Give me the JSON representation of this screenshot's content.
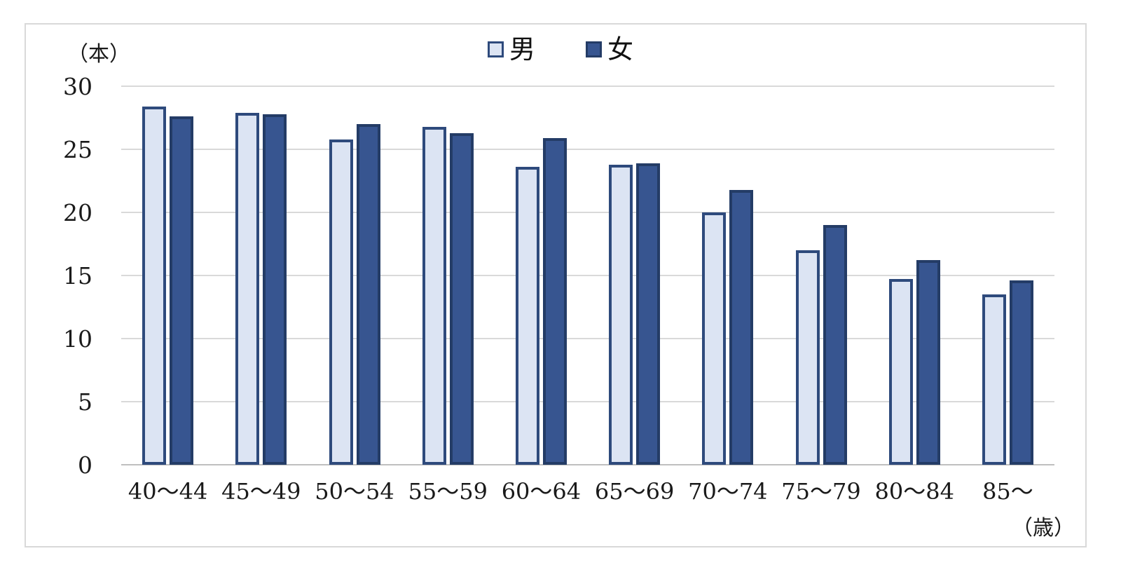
{
  "chart_data": {
    "type": "bar",
    "title": "",
    "y_axis_unit": "（本）",
    "x_axis_unit": "（歳）",
    "categories": [
      "40〜44",
      "45〜49",
      "50〜54",
      "55〜59",
      "60〜64",
      "65〜69",
      "70〜74",
      "75〜79",
      "80〜84",
      "85〜"
    ],
    "series": [
      {
        "name": "男",
        "values": [
          28.4,
          27.9,
          25.8,
          26.8,
          23.6,
          23.8,
          20.0,
          17.0,
          14.7,
          13.5
        ]
      },
      {
        "name": "女",
        "values": [
          27.6,
          27.8,
          27.0,
          26.3,
          25.9,
          23.9,
          21.8,
          19.0,
          16.2,
          14.6
        ]
      }
    ],
    "ylim": [
      0,
      30
    ],
    "y_ticks": [
      30,
      25,
      20,
      15,
      10,
      5,
      0
    ],
    "grid": true,
    "legend_position": "top-center",
    "colors": {
      "male_fill": "#dce4f3",
      "male_border": "#2e4a7c",
      "female_fill": "#375590",
      "female_border": "#243c66",
      "gridline": "#d9d9d9",
      "baseline": "#bfbfbf",
      "text": "#1a1a1a",
      "frame_border": "#d9d9d9"
    }
  }
}
